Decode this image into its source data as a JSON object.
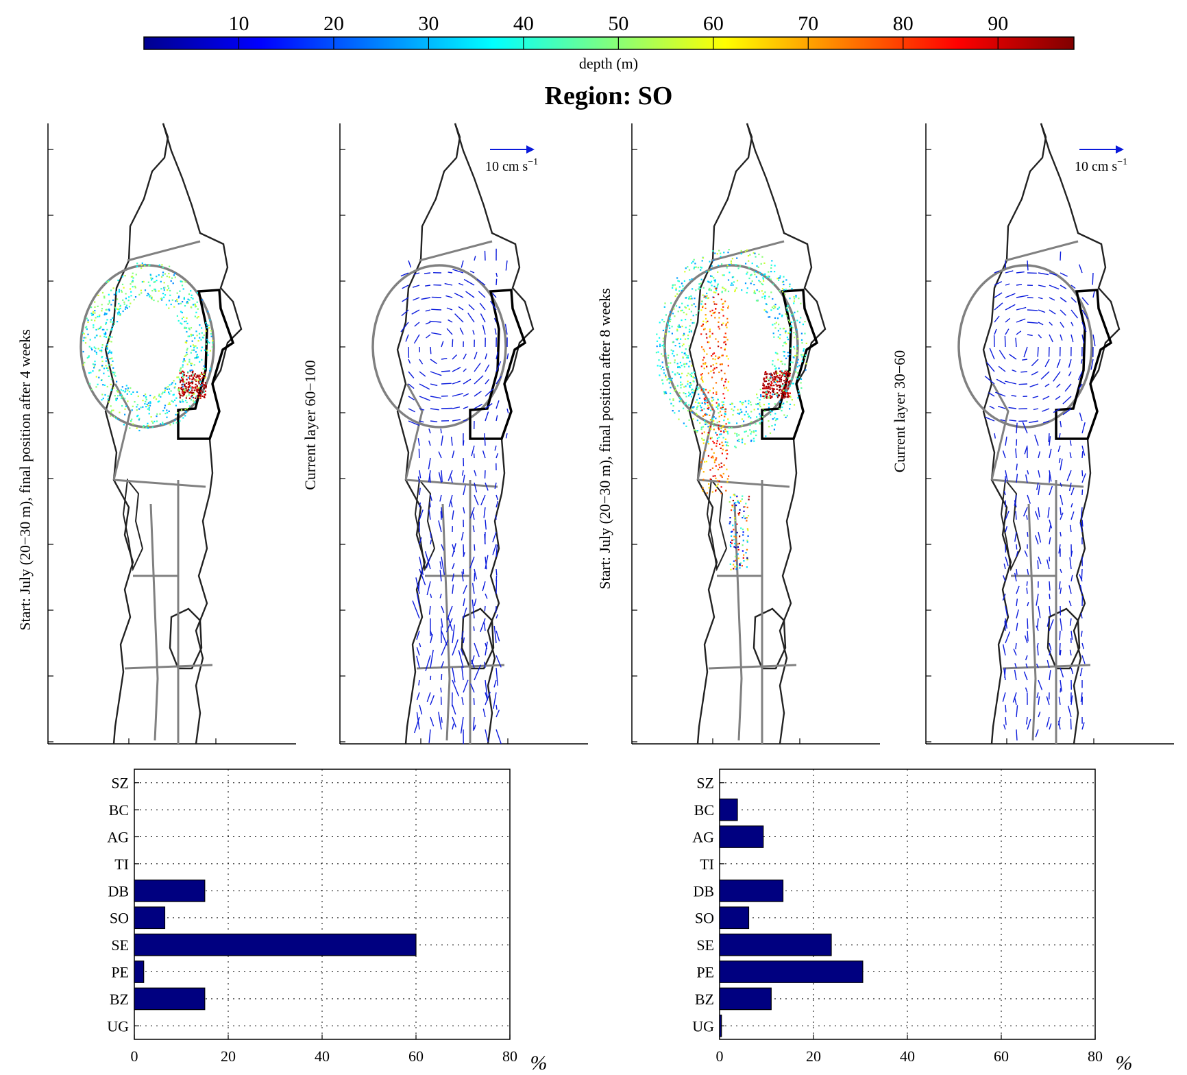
{
  "figure": {
    "title": "Region: SO"
  },
  "colorbar": {
    "label": "depth (m)",
    "ticks": [
      10,
      20,
      30,
      40,
      50,
      60,
      70,
      80,
      90
    ],
    "range": [
      0,
      98
    ],
    "colormap": "jet"
  },
  "map_panels": [
    {
      "id": "particles-4wk",
      "side_label": "Start: July (20−30 m), final position after 4 weeks",
      "type": "particles",
      "scale_label": ""
    },
    {
      "id": "current-60-100",
      "side_label": "Current layer 60−100",
      "type": "currents",
      "scale_label": "10 cm s",
      "scale_exp": "−1"
    },
    {
      "id": "particles-8wk",
      "side_label": "Start: July (20−30 m), final position after 8 weeks",
      "type": "particles",
      "scale_label": ""
    },
    {
      "id": "current-30-60",
      "side_label": "Current layer 30−60",
      "type": "currents",
      "scale_label": "10 cm s",
      "scale_exp": "−1"
    }
  ],
  "colors": {
    "bar_fill": "#000080",
    "region_lines": "#808080",
    "highlight_region": "#000000",
    "arrows": "#0a1adc",
    "coast": "#222222"
  },
  "chart_data": [
    {
      "type": "bar",
      "orientation": "horizontal",
      "categories": [
        "SZ",
        "BC",
        "AG",
        "TI",
        "DB",
        "SO",
        "SE",
        "PE",
        "BZ",
        "UG"
      ],
      "values": [
        0,
        0,
        0,
        0,
        15,
        6.5,
        60,
        2,
        15,
        0
      ],
      "xlim": [
        0,
        80
      ],
      "xticks": [
        0,
        20,
        40,
        60,
        80
      ],
      "xlabel": "%",
      "grid": true
    },
    {
      "type": "bar",
      "orientation": "horizontal",
      "categories": [
        "SZ",
        "BC",
        "AG",
        "TI",
        "DB",
        "SO",
        "SE",
        "PE",
        "BZ",
        "UG"
      ],
      "values": [
        0,
        3.8,
        9.3,
        0,
        13.5,
        6.2,
        23.8,
        30.5,
        11,
        0.4
      ],
      "xlim": [
        0,
        80
      ],
      "xticks": [
        0,
        20,
        40,
        60,
        80
      ],
      "xlabel": "%",
      "grid": true
    }
  ]
}
